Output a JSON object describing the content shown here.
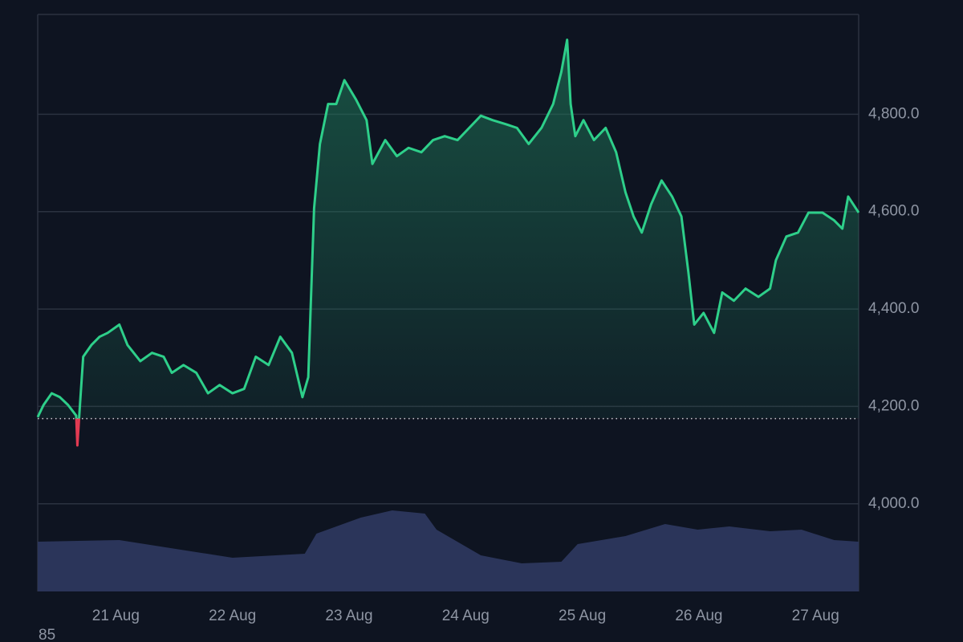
{
  "chart_data": {
    "type": "area",
    "x": [
      20.33,
      20.38,
      20.45,
      20.52,
      20.59,
      20.66,
      20.67,
      20.69,
      20.72,
      20.79,
      20.86,
      20.93,
      21.03,
      21.1,
      21.21,
      21.31,
      21.41,
      21.48,
      21.58,
      21.69,
      21.79,
      21.89,
      22.0,
      22.1,
      22.2,
      22.31,
      22.41,
      22.51,
      22.6,
      22.65,
      22.7,
      22.75,
      22.82,
      22.89,
      22.96,
      23.06,
      23.15,
      23.2,
      23.31,
      23.41,
      23.51,
      23.62,
      23.72,
      23.82,
      23.93,
      24.03,
      24.13,
      24.23,
      24.34,
      24.44,
      24.54,
      24.65,
      24.75,
      24.82,
      24.87,
      24.9,
      24.94,
      25.01,
      25.1,
      25.2,
      25.29,
      25.37,
      25.44,
      25.51,
      25.59,
      25.68,
      25.77,
      25.85,
      25.91,
      25.96,
      26.04,
      26.13,
      26.2,
      26.3,
      26.4,
      26.51,
      26.61,
      26.66,
      26.75,
      26.85,
      26.94,
      27.06,
      27.16,
      27.23,
      27.28,
      27.37
    ],
    "values": [
      4178,
      4203,
      4227,
      4219,
      4203,
      4181,
      4120,
      4195,
      4302,
      4326,
      4343,
      4351,
      4368,
      4326,
      4293,
      4310,
      4302,
      4269,
      4285,
      4269,
      4227,
      4244,
      4227,
      4236,
      4302,
      4285,
      4343,
      4310,
      4219,
      4260,
      4607,
      4739,
      4821,
      4821,
      4870,
      4830,
      4788,
      4698,
      4747,
      4714,
      4731,
      4722,
      4747,
      4755,
      4747,
      4772,
      4797,
      4788,
      4780,
      4772,
      4739,
      4772,
      4821,
      4887,
      4953,
      4821,
      4755,
      4788,
      4747,
      4772,
      4722,
      4640,
      4590,
      4557,
      4615,
      4664,
      4631,
      4590,
      4475,
      4368,
      4392,
      4351,
      4434,
      4417,
      4442,
      4425,
      4442,
      4500,
      4549,
      4557,
      4598,
      4598,
      4582,
      4565,
      4631,
      4598
    ],
    "color": "#2ecf8a",
    "down_color": "#e23a52",
    "baseline": 4175,
    "xlim": [
      20.33,
      27.37
    ],
    "xticks": [
      {
        "value": 21,
        "label": "21 Aug"
      },
      {
        "value": 22,
        "label": "22 Aug"
      },
      {
        "value": 23,
        "label": "23 Aug"
      },
      {
        "value": 24,
        "label": "24 Aug"
      },
      {
        "value": 25,
        "label": "25 Aug"
      },
      {
        "value": 26,
        "label": "26 Aug"
      },
      {
        "value": 27,
        "label": "27 Aug"
      }
    ],
    "ylim": [
      3820,
      5005
    ],
    "yticks": [
      {
        "value": 4000,
        "label": "4,000.0"
      },
      {
        "value": 4200,
        "label": "4,200.0"
      },
      {
        "value": 4400,
        "label": "4,400.0"
      },
      {
        "value": 4600,
        "label": "4,600.0"
      },
      {
        "value": 4800,
        "label": "4,800.0"
      }
    ],
    "grid": true,
    "volume": {
      "color": "#2b355a",
      "x": [
        20.33,
        21.03,
        22.0,
        22.62,
        22.72,
        23.1,
        23.37,
        23.65,
        23.75,
        24.13,
        24.48,
        24.82,
        24.96,
        25.37,
        25.71,
        25.99,
        26.26,
        26.61,
        26.88,
        27.16,
        27.37
      ],
      "values": [
        62,
        64,
        42,
        47,
        72,
        92,
        101,
        97,
        77,
        45,
        35,
        37,
        59,
        69,
        84,
        77,
        81,
        75,
        77,
        64,
        62
      ],
      "y2lim": [
        0,
        719
      ]
    },
    "annotation": "85"
  }
}
